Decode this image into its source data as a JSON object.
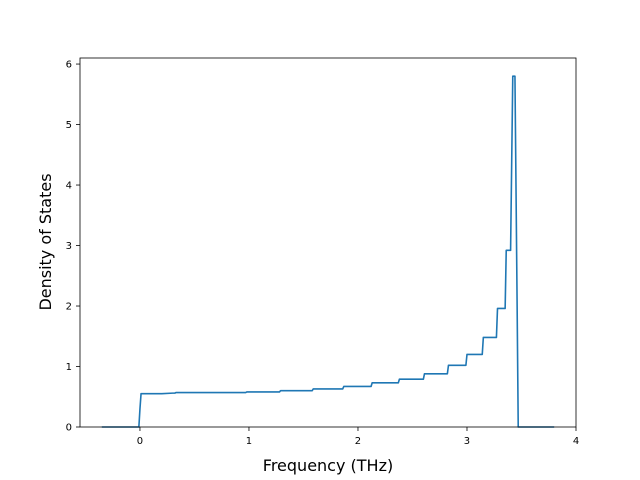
{
  "chart_data": {
    "type": "line",
    "title": "",
    "xlabel": "Frequency (THz)",
    "ylabel": "Density of States",
    "xlim": [
      -0.55,
      4.0
    ],
    "ylim": [
      0,
      6.1
    ],
    "xticks": [
      0,
      1,
      2,
      3,
      4
    ],
    "yticks": [
      0,
      1,
      2,
      3,
      4,
      5,
      6
    ],
    "grid": false,
    "legend": "none",
    "line_color": "#1f77b4",
    "series": [
      {
        "x": [
          -0.35,
          -0.01,
          0.0,
          0.01,
          0.2,
          0.3,
          0.32,
          0.33,
          0.65,
          0.66,
          0.97,
          0.98,
          1.28,
          1.29,
          1.58,
          1.59,
          1.86,
          1.87,
          2.12,
          2.13,
          2.37,
          2.38,
          2.6,
          2.61,
          2.82,
          2.83,
          2.99,
          3.0,
          3.14,
          3.15,
          3.27,
          3.28,
          3.35,
          3.36,
          3.4,
          3.42,
          3.43,
          3.44,
          3.46,
          3.47,
          3.8
        ],
        "y": [
          0,
          0,
          0.3,
          0.55,
          0.55,
          0.56,
          0.56,
          0.57,
          0.57,
          0.57,
          0.57,
          0.58,
          0.58,
          0.6,
          0.6,
          0.63,
          0.63,
          0.67,
          0.67,
          0.73,
          0.73,
          0.79,
          0.79,
          0.88,
          0.88,
          1.02,
          1.02,
          1.2,
          1.2,
          1.48,
          1.48,
          1.96,
          1.96,
          2.92,
          2.92,
          5.8,
          5.8,
          5.8,
          2.0,
          0,
          0
        ]
      }
    ]
  }
}
